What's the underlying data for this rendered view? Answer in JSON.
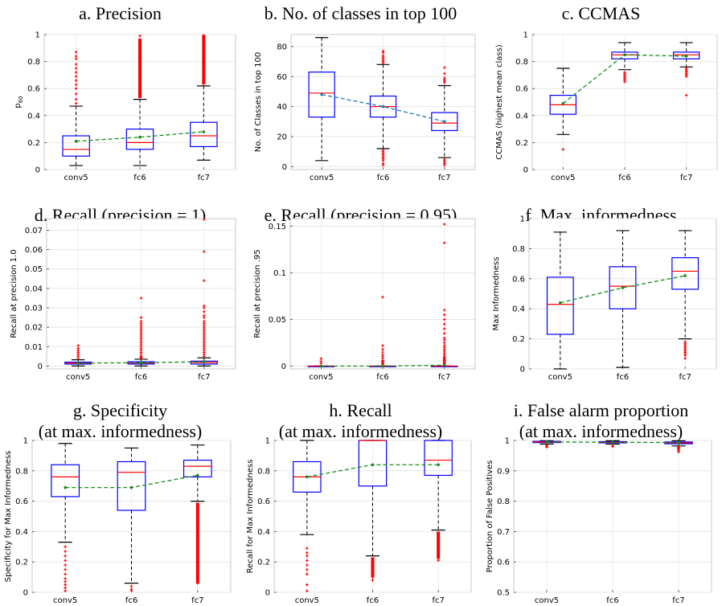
{
  "chart_data": [
    {
      "type": "box",
      "title_lines": [
        "a. Precision"
      ],
      "ylabel": "p",
      "ylabel_sub": "60",
      "ylim": [
        0,
        1.0
      ],
      "yticks": [
        0,
        0.2,
        0.4,
        0.6,
        0.8,
        1
      ],
      "ytick_labels": [
        "0",
        "0.2",
        "0.4",
        "0.6",
        "0.8",
        "1"
      ],
      "grid": true,
      "categories": [
        "conv5",
        "fc6",
        "fc7"
      ],
      "boxes": [
        {
          "wlo": 0.03,
          "q1": 0.1,
          "med": 0.15,
          "q3": 0.25,
          "whi": 0.47,
          "mean": 0.21
        },
        {
          "wlo": 0.03,
          "q1": 0.15,
          "med": 0.2,
          "q3": 0.3,
          "whi": 0.52,
          "mean": 0.24
        },
        {
          "wlo": 0.07,
          "q1": 0.17,
          "med": 0.25,
          "q3": 0.35,
          "whi": 0.62,
          "mean": 0.28
        }
      ],
      "outliers": [
        [
          0.49,
          0.52,
          0.56,
          0.6,
          0.63,
          0.66,
          0.69,
          0.72,
          0.75,
          0.78,
          0.82,
          0.84,
          0.87
        ],
        [
          0.54,
          0.86,
          0.99
        ],
        [
          0.64,
          1.0
        ]
      ],
      "outlier_bands": [
        [],
        [
          0.53,
          0.97
        ],
        [
          0.63,
          1.0
        ]
      ]
    },
    {
      "type": "box",
      "title_lines": [
        "b. No. of classes in top 100"
      ],
      "ylabel": "No. of Classes in top 100",
      "ylabel_sub": "",
      "ylim": [
        -2,
        88
      ],
      "yticks": [
        0,
        20,
        40,
        60,
        80
      ],
      "ytick_labels": [
        "0",
        "20",
        "40",
        "60",
        "80"
      ],
      "grid": true,
      "categories": [
        "conv5",
        "fc6",
        "fc7"
      ],
      "boxes": [
        {
          "wlo": 4,
          "q1": 33,
          "med": 49,
          "q3": 63,
          "whi": 86,
          "mean": 48
        },
        {
          "wlo": 12,
          "q1": 33,
          "med": 40,
          "q3": 47,
          "whi": 68,
          "mean": 40
        },
        {
          "wlo": 6,
          "q1": 24,
          "med": 29,
          "q3": 36,
          "whi": 54,
          "mean": 30
        }
      ],
      "outliers": [
        [],
        [
          1,
          2,
          4,
          5,
          6,
          7,
          8,
          9,
          10,
          11,
          69,
          70,
          71,
          72,
          73,
          74,
          76,
          77
        ],
        [
          1,
          2,
          3,
          4,
          5,
          56,
          57,
          58,
          59,
          62,
          66
        ]
      ],
      "outlier_bands": [
        [],
        [],
        []
      ]
    },
    {
      "type": "box",
      "title_lines": [
        "c. CCMAS"
      ],
      "ylabel": "CCMAS (highest mean class)",
      "ylabel_sub": "",
      "ylim": [
        0,
        1.0
      ],
      "yticks": [
        0,
        0.2,
        0.4,
        0.6,
        0.8,
        1
      ],
      "ytick_labels": [
        "0",
        "0.2",
        "0.4",
        "0.6",
        "0.8",
        "1"
      ],
      "grid": true,
      "categories": [
        "conv5",
        "fc6",
        "fc7"
      ],
      "boxes": [
        {
          "wlo": 0.26,
          "q1": 0.41,
          "med": 0.48,
          "q3": 0.55,
          "whi": 0.75,
          "mean": 0.49
        },
        {
          "wlo": 0.74,
          "q1": 0.82,
          "med": 0.85,
          "q3": 0.87,
          "whi": 0.94,
          "mean": 0.85
        },
        {
          "wlo": 0.76,
          "q1": 0.82,
          "med": 0.85,
          "q3": 0.87,
          "whi": 0.94,
          "mean": 0.84
        }
      ],
      "outliers": [
        [
          0.15
        ],
        [
          0.65,
          0.66,
          0.67,
          0.68,
          0.69,
          0.7,
          0.71,
          0.72
        ],
        [
          0.55,
          0.69,
          0.7,
          0.71,
          0.72,
          0.73,
          0.74,
          0.75
        ]
      ],
      "outlier_bands": [
        [],
        [],
        []
      ]
    },
    {
      "type": "box",
      "title_lines": [
        "d. Recall (precision = 1)"
      ],
      "ylabel": "Recall at precision 1.0",
      "ylabel_sub": "",
      "ylim": [
        -0.0015,
        0.076
      ],
      "yticks": [
        0,
        0.01,
        0.02,
        0.03,
        0.04,
        0.05,
        0.06,
        0.07
      ],
      "ytick_labels": [
        "0",
        "0.01",
        "0.02",
        "0.03",
        "0.04",
        "0.05",
        "0.06",
        "0.07"
      ],
      "grid": true,
      "categories": [
        "conv5",
        "fc6",
        "fc7"
      ],
      "boxes": [
        {
          "wlo": 0.0,
          "q1": 0.001,
          "med": 0.0015,
          "q3": 0.002,
          "whi": 0.0032,
          "mean": 0.0015
        },
        {
          "wlo": 0.0,
          "q1": 0.001,
          "med": 0.0015,
          "q3": 0.0022,
          "whi": 0.0035,
          "mean": 0.0017
        },
        {
          "wlo": 0.0,
          "q1": 0.001,
          "med": 0.0018,
          "q3": 0.0025,
          "whi": 0.0042,
          "mean": 0.0022
        }
      ],
      "outliers": [
        [
          0.004,
          0.005,
          0.006,
          0.007,
          0.008,
          0.009,
          0.0105
        ],
        [
          0.004,
          0.0045,
          0.005,
          0.006,
          0.007,
          0.008,
          0.009,
          0.01,
          0.011,
          0.012,
          0.013,
          0.014,
          0.015,
          0.016,
          0.017,
          0.018,
          0.019,
          0.02,
          0.021,
          0.022,
          0.023,
          0.025,
          0.035
        ],
        [
          0.005,
          0.006,
          0.007,
          0.008,
          0.009,
          0.01,
          0.011,
          0.012,
          0.013,
          0.014,
          0.015,
          0.016,
          0.017,
          0.018,
          0.019,
          0.02,
          0.021,
          0.022,
          0.023,
          0.025,
          0.026,
          0.028,
          0.03,
          0.031,
          0.044,
          0.059,
          0.076
        ]
      ],
      "outlier_bands": [
        [],
        [],
        []
      ]
    },
    {
      "type": "box",
      "title_lines": [
        "e. Recall (precision = 0.95)"
      ],
      "ylabel": "Recall at precision .95",
      "ylabel_sub": "",
      "ylim": [
        -0.003,
        0.158
      ],
      "yticks": [
        0,
        0.05,
        0.1,
        0.15
      ],
      "ytick_labels": [
        "0",
        "0.05",
        "0.1",
        "0.15"
      ],
      "grid": true,
      "categories": [
        "conv5",
        "fc6",
        "fc7"
      ],
      "boxes": [
        {
          "wlo": 0,
          "q1": 0,
          "med": 0,
          "q3": 0,
          "whi": 0,
          "mean": 0
        },
        {
          "wlo": 0,
          "q1": 0,
          "med": 0,
          "q3": 0,
          "whi": 0,
          "mean": 0
        },
        {
          "wlo": 0,
          "q1": 0,
          "med": 0,
          "q3": 0,
          "whi": 0,
          "mean": 0.001
        }
      ],
      "outliers": [
        [
          0.003,
          0.005,
          0.008
        ],
        [
          0.002,
          0.003,
          0.004,
          0.005,
          0.006,
          0.008,
          0.01,
          0.012,
          0.015,
          0.018,
          0.022,
          0.074
        ],
        [
          0.002,
          0.003,
          0.004,
          0.005,
          0.006,
          0.007,
          0.008,
          0.009,
          0.01,
          0.012,
          0.014,
          0.016,
          0.018,
          0.02,
          0.022,
          0.025,
          0.028,
          0.03,
          0.035,
          0.04,
          0.045,
          0.05,
          0.055,
          0.06,
          0.132,
          0.152
        ]
      ],
      "outlier_bands": [
        [],
        [],
        []
      ]
    },
    {
      "type": "box",
      "title_lines": [
        "f. Max. informedness"
      ],
      "ylabel": "Max Informedness",
      "ylabel_sub": "",
      "ylim": [
        0,
        1.0
      ],
      "yticks": [
        0,
        0.2,
        0.4,
        0.6,
        0.8,
        1
      ],
      "ytick_labels": [
        "0",
        "0.2",
        "0.4",
        "0.6",
        "0.8",
        "1"
      ],
      "grid": true,
      "categories": [
        "conv5",
        "fc6",
        "fc7"
      ],
      "boxes": [
        {
          "wlo": 0.0,
          "q1": 0.23,
          "med": 0.43,
          "q3": 0.61,
          "whi": 0.91,
          "mean": 0.44
        },
        {
          "wlo": 0.01,
          "q1": 0.4,
          "med": 0.55,
          "q3": 0.68,
          "whi": 0.92,
          "mean": 0.54
        },
        {
          "wlo": 0.2,
          "q1": 0.53,
          "med": 0.65,
          "q3": 0.74,
          "whi": 0.92,
          "mean": 0.62
        }
      ],
      "outliers": [
        [],
        [],
        [
          0.07,
          0.09,
          0.1,
          0.11,
          0.12,
          0.13,
          0.14,
          0.15,
          0.16,
          0.17,
          0.18
        ]
      ],
      "outlier_bands": [
        [],
        [],
        []
      ]
    },
    {
      "type": "box",
      "title_lines": [
        "g. Specificity",
        "(at max. informedness)"
      ],
      "ylabel": "Specificity for Max Informedness",
      "ylabel_sub": "",
      "ylim": [
        0,
        1.0
      ],
      "yticks": [
        0,
        0.2,
        0.4,
        0.6,
        0.8,
        1
      ],
      "ytick_labels": [
        "0",
        "0.2",
        "0.4",
        "0.6",
        "0.8",
        "1"
      ],
      "grid": true,
      "categories": [
        "conv5",
        "fc6",
        "fc7"
      ],
      "boxes": [
        {
          "wlo": 0.33,
          "q1": 0.63,
          "med": 0.76,
          "q3": 0.84,
          "whi": 0.98,
          "mean": 0.69
        },
        {
          "wlo": 0.06,
          "q1": 0.54,
          "med": 0.79,
          "q3": 0.86,
          "whi": 0.95,
          "mean": 0.69
        },
        {
          "wlo": 0.6,
          "q1": 0.76,
          "med": 0.83,
          "q3": 0.87,
          "whi": 0.97,
          "mean": 0.77
        }
      ],
      "outliers": [
        [
          0.01,
          0.03,
          0.05,
          0.07,
          0.09,
          0.12,
          0.15,
          0.18,
          0.21,
          0.24,
          0.27,
          0.3
        ],
        [
          0.01,
          0.02,
          0.04
        ],
        [
          0.06,
          0.58
        ]
      ],
      "outlier_bands": [
        [],
        [],
        [
          0.06,
          0.59
        ]
      ]
    },
    {
      "type": "box",
      "title_lines": [
        "h. Recall",
        "(at max. informedness)"
      ],
      "ylabel": "Recall for Max Informedness",
      "ylabel_sub": "",
      "ylim": [
        0,
        1.0
      ],
      "yticks": [
        0,
        0.2,
        0.4,
        0.6,
        0.8,
        1
      ],
      "ytick_labels": [
        "0",
        "0.2",
        "0.4",
        "0.6",
        "0.8",
        "1"
      ],
      "grid": true,
      "categories": [
        "conv5",
        "fc6",
        "fc7"
      ],
      "boxes": [
        {
          "wlo": 0.38,
          "q1": 0.66,
          "med": 0.76,
          "q3": 0.86,
          "whi": 1.0,
          "mean": 0.76
        },
        {
          "wlo": 0.24,
          "q1": 0.7,
          "med": 1.0,
          "q3": 1.0,
          "whi": 1.0,
          "mean": 0.84
        },
        {
          "wlo": 0.41,
          "q1": 0.77,
          "med": 0.87,
          "q3": 1.0,
          "whi": 1.0,
          "mean": 0.84
        }
      ],
      "outliers": [
        [
          0.01,
          0.05,
          0.12,
          0.15,
          0.18,
          0.21,
          0.24,
          0.26,
          0.29
        ],
        [
          0.08,
          0.1,
          0.12,
          0.14,
          0.16,
          0.18,
          0.2,
          0.22
        ],
        [
          0.21,
          0.23,
          0.25,
          0.27,
          0.29,
          0.31,
          0.33,
          0.35,
          0.37,
          0.39
        ]
      ],
      "outlier_bands": [
        [],
        [
          0.1,
          0.23
        ],
        [
          0.22,
          0.4
        ]
      ]
    },
    {
      "type": "box",
      "title_lines": [
        "i. False alarm proportion",
        "(at max. informedness)"
      ],
      "ylabel": "Proportion of False Positives",
      "ylabel_sub": "",
      "ylim": [
        0.5,
        1.0
      ],
      "yticks": [
        0.5,
        0.6,
        0.7,
        0.8,
        0.9,
        1
      ],
      "ytick_labels": [
        "0.5",
        "0.6",
        "0.7",
        "0.8",
        "0.9",
        "1"
      ],
      "grid": true,
      "categories": [
        "conv5",
        "fc6",
        "fc7"
      ],
      "boxes": [
        {
          "wlo": 0.988,
          "q1": 0.993,
          "med": 0.995,
          "q3": 0.997,
          "whi": 0.999,
          "mean": 0.995
        },
        {
          "wlo": 0.988,
          "q1": 0.992,
          "med": 0.994,
          "q3": 0.996,
          "whi": 0.999,
          "mean": 0.994
        },
        {
          "wlo": 0.982,
          "q1": 0.989,
          "med": 0.992,
          "q3": 0.995,
          "whi": 0.999,
          "mean": 0.993
        }
      ],
      "outliers": [
        [
          0.978,
          0.981,
          0.984
        ],
        [
          0.98,
          0.982
        ],
        [
          0.962,
          0.966,
          0.97,
          0.973,
          0.976,
          0.979
        ]
      ],
      "outlier_bands": [
        [],
        [],
        []
      ]
    }
  ]
}
